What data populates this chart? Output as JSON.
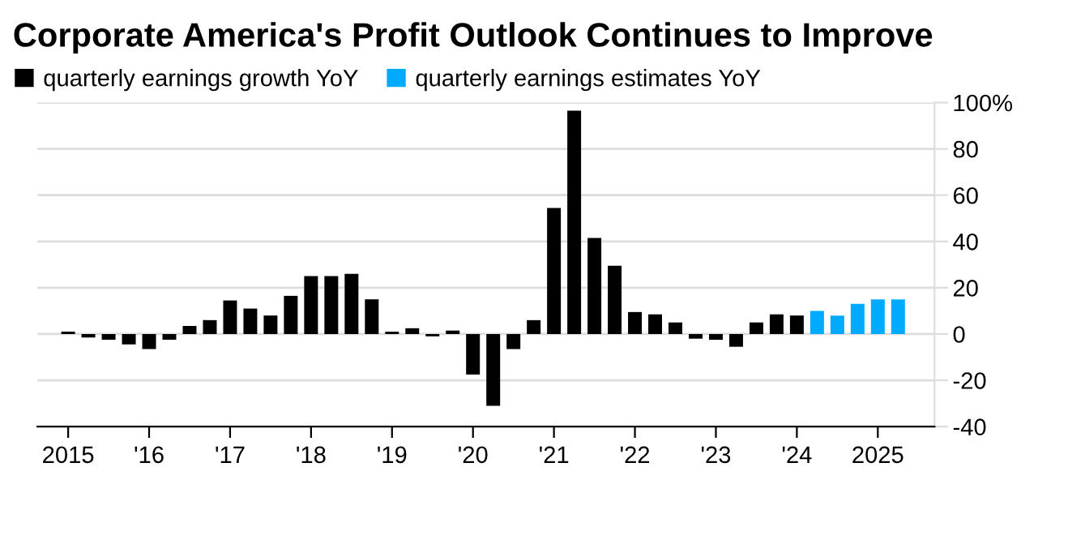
{
  "chart_data": {
    "type": "bar",
    "title": "Corporate America's Profit Outlook Continues to Improve",
    "series": [
      {
        "name": "quarterly earnings growth YoY",
        "color": "#000000",
        "x": [
          2015.0,
          2015.25,
          2015.5,
          2015.75,
          2016.0,
          2016.25,
          2016.5,
          2016.75,
          2017.0,
          2017.25,
          2017.5,
          2017.75,
          2018.0,
          2018.25,
          2018.5,
          2018.75,
          2019.0,
          2019.25,
          2019.5,
          2019.75,
          2020.0,
          2020.25,
          2020.5,
          2020.75,
          2021.0,
          2021.25,
          2021.5,
          2021.75,
          2022.0,
          2022.25,
          2022.5,
          2022.75,
          2023.0,
          2023.25,
          2023.5,
          2023.75,
          2024.0
        ],
        "values": [
          1,
          -1.5,
          -2.5,
          -4.5,
          -6.5,
          -2.5,
          3.5,
          6,
          14.5,
          11,
          8,
          16.5,
          25,
          25,
          26,
          15,
          1,
          2.5,
          -1,
          1.5,
          -17.5,
          -31,
          -6.5,
          6,
          54.5,
          96.5,
          41.5,
          29.5,
          9.5,
          8.5,
          5,
          -2,
          -2.5,
          -5.5,
          5,
          8.5,
          8
        ]
      },
      {
        "name": "quarterly earnings estimates YoY",
        "color": "#00aaff",
        "x": [
          2024.25,
          2024.5,
          2024.75,
          2025.0,
          2025.25
        ],
        "values": [
          10,
          8,
          13,
          15,
          15
        ]
      }
    ],
    "xlim": [
      2014.62,
      2025.7
    ],
    "xticks": [
      {
        "value": 2015,
        "label": "2015"
      },
      {
        "value": 2016,
        "label": "'16"
      },
      {
        "value": 2017,
        "label": "'17"
      },
      {
        "value": 2018,
        "label": "'18"
      },
      {
        "value": 2019,
        "label": "'19"
      },
      {
        "value": 2020,
        "label": "'20"
      },
      {
        "value": 2021,
        "label": "'21"
      },
      {
        "value": 2022,
        "label": "'22"
      },
      {
        "value": 2023,
        "label": "'23"
      },
      {
        "value": 2024,
        "label": "'24"
      },
      {
        "value": 2025,
        "label": "2025"
      }
    ],
    "ylim": [
      -40,
      100
    ],
    "yticks": [
      -40,
      -20,
      0,
      20,
      40,
      60,
      80,
      {
        "value": 100,
        "label": "100%"
      }
    ],
    "grid": "y",
    "legend": "top left"
  }
}
